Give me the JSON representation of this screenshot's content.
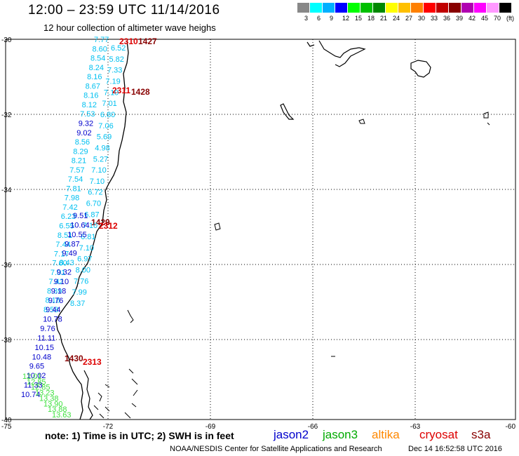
{
  "title": "12:00 – 23:59 UTC 11/14/2016",
  "subtitle": "12 hour collection of altimeter wave heighs",
  "color_scale": {
    "colors": [
      "#888888",
      "#00ffff",
      "#00b0ff",
      "#0000ff",
      "#00ff00",
      "#00c000",
      "#008800",
      "#ffff00",
      "#ffc000",
      "#ff8000",
      "#ff0000",
      "#c00000",
      "#880000",
      "#b000b0",
      "#ff00ff",
      "#ff99ff",
      "#000000"
    ],
    "labels": [
      "3",
      "6",
      "9",
      "12",
      "15",
      "18",
      "21",
      "24",
      "27",
      "30",
      "33",
      "36",
      "39",
      "42",
      "45",
      "70",
      "(ft)"
    ]
  },
  "axes": {
    "lon_labels": [
      "-75",
      "-72",
      "-69",
      "-66",
      "-63",
      "-60"
    ],
    "lat_labels": [
      "-30",
      "-32",
      "-34",
      "-36",
      "-38",
      "-40"
    ]
  },
  "note": "note:  1) Time is in UTC;  2) SWH is in feet",
  "legend": [
    {
      "name": "jason2",
      "color": "#0000cc"
    },
    {
      "name": "jason3",
      "color": "#00aa00"
    },
    {
      "name": "altika",
      "color": "#ff8800"
    },
    {
      "name": "cryosat",
      "color": "#dd0000"
    },
    {
      "name": "s3a",
      "color": "#880000"
    }
  ],
  "credit": "NOAA/NESDIS Center for Satellite Applications and Research",
  "generated": "Dec 14 16:52:58 UTC 2016",
  "time_labels": [
    {
      "text": "2310",
      "color": "#dd0000"
    },
    {
      "text": "1427",
      "color": "#880000"
    },
    {
      "text": "2311",
      "color": "#dd0000"
    },
    {
      "text": "1428",
      "color": "#880000"
    },
    {
      "text": "1429",
      "color": "#880000"
    },
    {
      "text": "2312",
      "color": "#dd0000"
    },
    {
      "text": "1430",
      "color": "#880000"
    },
    {
      "text": "2313",
      "color": "#dd0000"
    }
  ],
  "swh_tracks": [
    {
      "satellite": "cryosat",
      "values": [
        "7.77",
        "8.60",
        "8.54",
        "8.24",
        "8.16",
        "8.67",
        "8.16",
        "8.12",
        "7.53",
        "9.32",
        "9.02",
        "8.56",
        "8.29",
        "8.21",
        "7.57",
        "7.54",
        "7.81",
        "7.98",
        "7.42",
        "6.23",
        "6.55",
        "8.51",
        "7.44",
        "7.17",
        "7.60",
        "7.01",
        "7.42",
        "8.39",
        "8.16",
        "8.58"
      ]
    },
    {
      "satellite": "s3a",
      "values": [
        "6.52",
        "5.82",
        "7.33",
        "7.19",
        "7.10",
        "7.01",
        "6.80",
        "7.06",
        "5.69",
        "4.98",
        "5.27",
        "7.10",
        "7.10",
        "6.72",
        "6.70",
        "6.87",
        "7.10",
        "6.81",
        "7.10",
        "6.97",
        "8.00",
        "7.76",
        "7.99",
        "8.37"
      ]
    },
    {
      "satellite": "jason2",
      "values": [
        "9.51",
        "10.64",
        "10.55",
        "9.87",
        "9.49",
        "8.43",
        "9.32",
        "9.10",
        "9.18",
        "9.76",
        "9.44",
        "10.78",
        "9.76",
        "11.11",
        "10.15",
        "10.48",
        "9.65",
        "10.02",
        "11.33",
        "10.74"
      ]
    },
    {
      "satellite": "jason3",
      "values": [
        "12.01",
        "12.85",
        "12.85",
        "13.23",
        "13.38",
        "13.90",
        "13.88",
        "13.63"
      ]
    }
  ]
}
